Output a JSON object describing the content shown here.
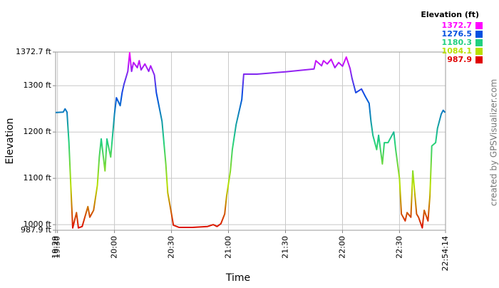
{
  "chart_data": {
    "type": "line",
    "x_label": "Time",
    "y_label": "Elevation",
    "credit": "created by GPSVisualizer.com",
    "grid": true,
    "x": [
      "19:29",
      "19:33",
      "19:34",
      "19:35",
      "19:36",
      "19:37",
      "19:38",
      "19:40",
      "19:41",
      "19:43",
      "19:46",
      "19:47",
      "19:49",
      "19:51",
      "19:52",
      "19:53",
      "19:55",
      "19:56",
      "19:58",
      "20:00",
      "20:01",
      "20:03",
      "20:04",
      "20:05",
      "20:07",
      "20:08",
      "20:09",
      "20:10",
      "20:12",
      "20:13",
      "20:14",
      "20:16",
      "20:18",
      "20:19",
      "20:21",
      "20:22",
      "20:25",
      "20:27",
      "20:28",
      "20:30",
      "20:31",
      "20:34",
      "20:41",
      "20:49",
      "20:52",
      "20:54",
      "20:56",
      "20:58",
      "20:59",
      "21:01",
      "21:02",
      "21:04",
      "21:07",
      "21:08",
      "21:15",
      "21:30",
      "21:45",
      "21:46",
      "21:49",
      "21:50",
      "21:52",
      "21:54",
      "21:56",
      "21:58",
      "22:00",
      "22:02",
      "22:04",
      "22:05",
      "22:07",
      "22:10",
      "22:12",
      "22:14",
      "22:15",
      "22:16",
      "22:18",
      "22:19",
      "22:21",
      "22:22",
      "22:24",
      "22:25",
      "22:27",
      "22:28",
      "22:30",
      "22:31",
      "22:33",
      "22:34",
      "22:36",
      "22:37",
      "22:39",
      "22:40",
      "22:42",
      "22:43",
      "22:45",
      "22:46",
      "22:47",
      "22:49",
      "22:50",
      "22:52",
      "22:53",
      "22:54"
    ],
    "values": [
      1242,
      1243,
      1250,
      1243,
      1177,
      1085,
      993,
      1026,
      993,
      996,
      1039,
      1016,
      1031,
      1085,
      1146,
      1185,
      1116,
      1185,
      1146,
      1239,
      1274,
      1257,
      1285,
      1303,
      1331,
      1371,
      1331,
      1350,
      1339,
      1354,
      1334,
      1347,
      1331,
      1343,
      1323,
      1285,
      1223,
      1131,
      1069,
      1023,
      999,
      994,
      994,
      996,
      1000,
      996,
      1002,
      1023,
      1062,
      1116,
      1162,
      1216,
      1270,
      1325,
      1325,
      1330,
      1336,
      1354,
      1343,
      1354,
      1347,
      1357,
      1339,
      1350,
      1342,
      1362,
      1337,
      1316,
      1285,
      1293,
      1277,
      1262,
      1223,
      1193,
      1162,
      1193,
      1131,
      1177,
      1177,
      1185,
      1200,
      1162,
      1100,
      1023,
      1008,
      1026,
      1016,
      1116,
      1023,
      1016,
      993,
      1031,
      1008,
      1062,
      1170,
      1177,
      1208,
      1239,
      1247,
      1242
    ],
    "xlim": [
      "19:29",
      "22:54:14"
    ],
    "xticks": [
      "19:29",
      "19:30",
      "20:00",
      "20:30",
      "21:00",
      "21:30",
      "22:00",
      "22:30",
      "22:54:14"
    ],
    "ylim": [
      987.9,
      1372.7
    ],
    "yticks": [
      {
        "value": 987.9,
        "label": "987.9 ft"
      },
      {
        "value": 1000,
        "label": "1000 ft"
      },
      {
        "value": 1100,
        "label": "1100 ft"
      },
      {
        "value": 1200,
        "label": "1200 ft"
      },
      {
        "value": 1300,
        "label": "1300 ft"
      },
      {
        "value": 1372.7,
        "label": "1372.7 ft"
      }
    ],
    "color_scale": {
      "title": "Elevation (ft)",
      "values": [
        1372.7,
        1276.5,
        1180.3,
        1084.1,
        987.9
      ],
      "colors": [
        "#ff00ff",
        "#0050e0",
        "#20d080",
        "#b8e000",
        "#e00000"
      ]
    }
  }
}
